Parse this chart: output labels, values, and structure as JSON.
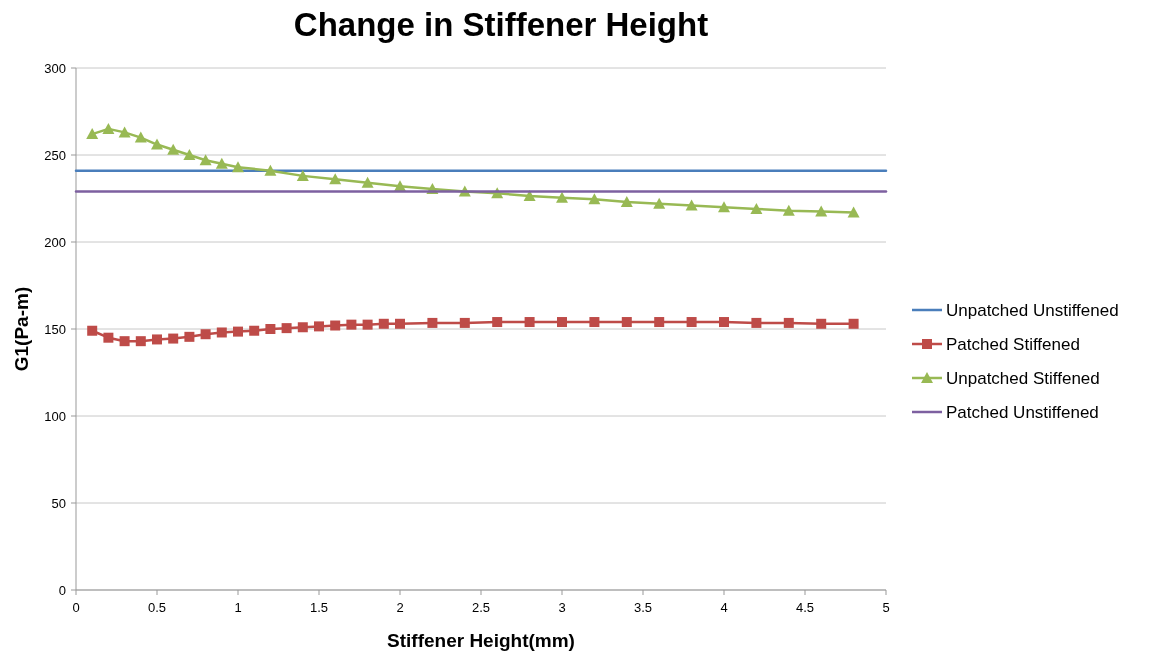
{
  "chart_data": {
    "type": "line",
    "title": "Change in Stiffener Height",
    "xlabel": "Stiffener Height(mm)",
    "ylabel": "G1(Pa-m)",
    "xlim": [
      0,
      5
    ],
    "xticks": [
      0,
      0.5,
      1,
      1.5,
      2,
      2.5,
      3,
      3.5,
      4,
      4.5,
      5
    ],
    "ylim": [
      0,
      300
    ],
    "yticks": [
      0,
      50,
      100,
      150,
      200,
      250,
      300
    ],
    "grid": "y",
    "legend": "right",
    "series": [
      {
        "name": "Unpatched Unstiffened",
        "color": "#4a7ebb",
        "marker": "none",
        "x": [
          0,
          5
        ],
        "values": [
          241,
          241
        ]
      },
      {
        "name": "Patched Stiffened",
        "color": "#be4b48",
        "marker": "square",
        "x": [
          0.1,
          0.2,
          0.3,
          0.4,
          0.5,
          0.6,
          0.7,
          0.8,
          0.9,
          1.0,
          1.1,
          1.2,
          1.3,
          1.4,
          1.5,
          1.6,
          1.7,
          1.8,
          1.9,
          2.0,
          2.2,
          2.4,
          2.6,
          2.8,
          3.0,
          3.2,
          3.4,
          3.6,
          3.8,
          4.0,
          4.2,
          4.4,
          4.6,
          4.8
        ],
        "values": [
          149,
          145,
          143,
          143,
          144,
          144.5,
          145.5,
          147,
          148,
          148.5,
          149,
          150,
          150.5,
          151,
          151.5,
          152,
          152.5,
          152.5,
          153,
          153,
          153.5,
          153.5,
          154,
          154,
          154,
          154,
          154,
          154,
          154,
          154,
          153.5,
          153.5,
          153,
          153
        ]
      },
      {
        "name": "Unpatched Stiffened",
        "color": "#98b954",
        "marker": "triangle",
        "x": [
          0.1,
          0.2,
          0.3,
          0.4,
          0.5,
          0.6,
          0.7,
          0.8,
          0.9,
          1.0,
          1.2,
          1.4,
          1.6,
          1.8,
          2.0,
          2.2,
          2.4,
          2.6,
          2.8,
          3.0,
          3.2,
          3.4,
          3.6,
          3.8,
          4.0,
          4.2,
          4.4,
          4.6,
          4.8
        ],
        "values": [
          262,
          265,
          263,
          260,
          256,
          253,
          250,
          247,
          245,
          243,
          241,
          238,
          236,
          234,
          232,
          230.5,
          229,
          228,
          226.5,
          225.5,
          224.5,
          223,
          222,
          221,
          220,
          219,
          218,
          217.5,
          217
        ]
      },
      {
        "name": "Patched Unstiffened",
        "color": "#7d60a0",
        "marker": "none",
        "x": [
          0,
          5
        ],
        "values": [
          229,
          229
        ]
      }
    ]
  }
}
